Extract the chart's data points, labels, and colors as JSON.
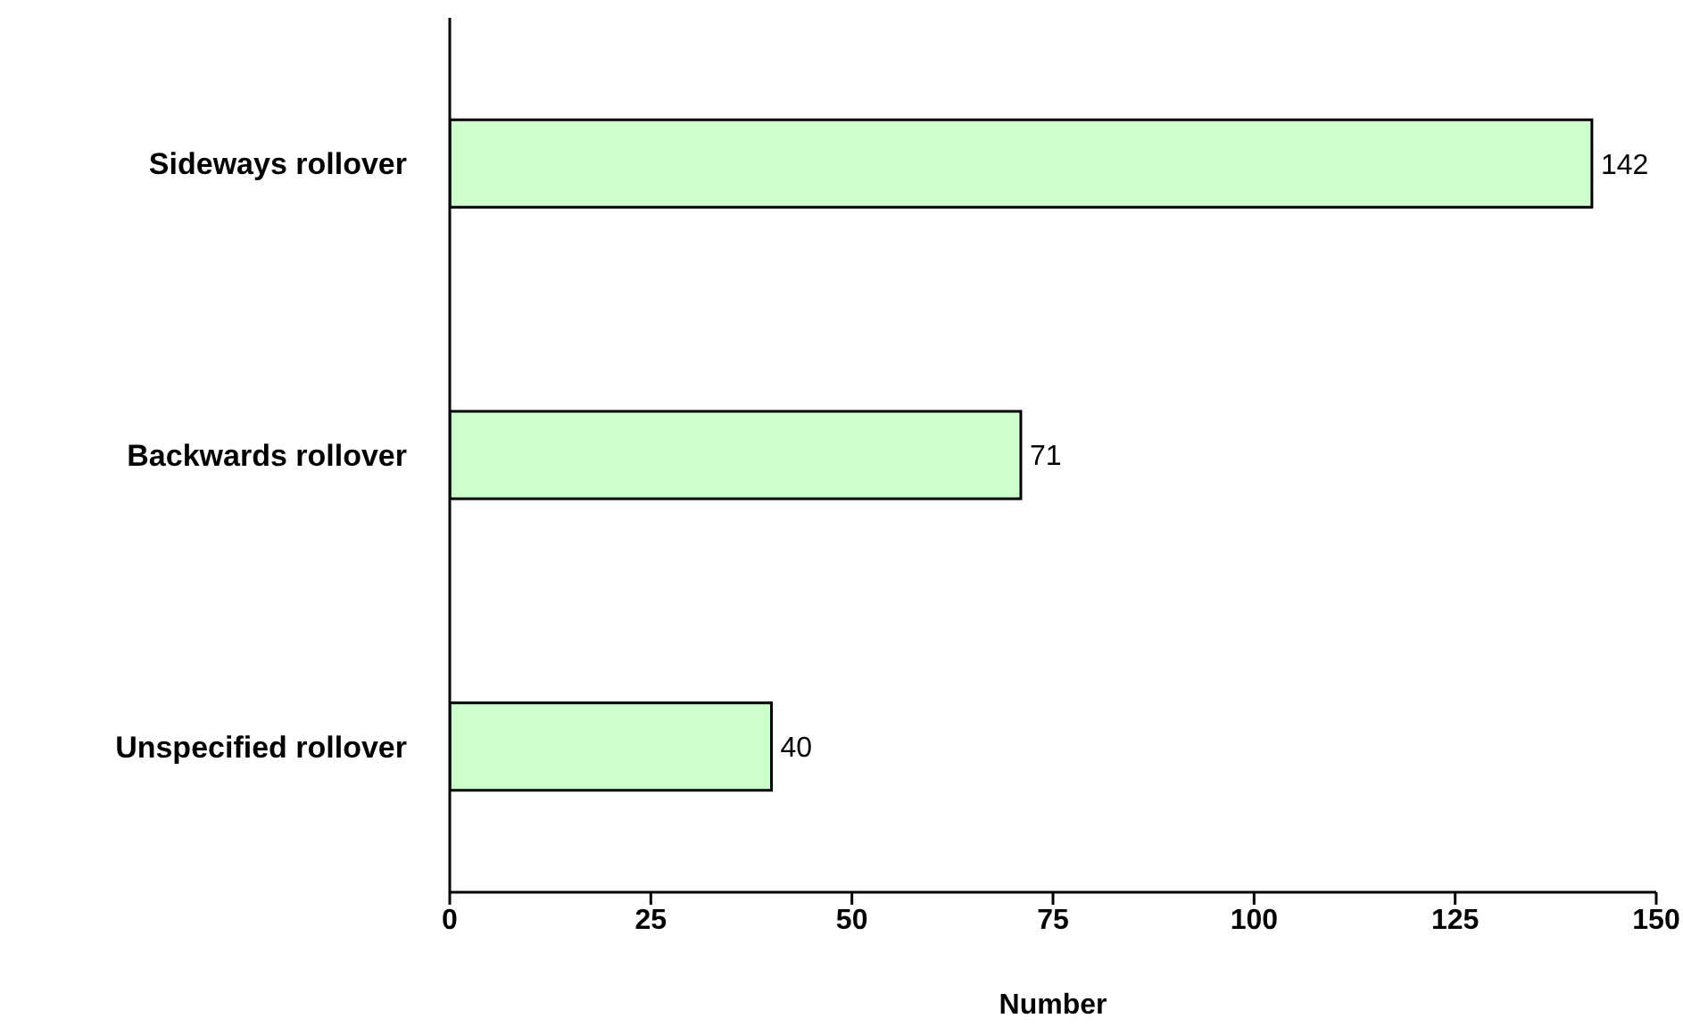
{
  "chart_data": {
    "type": "bar",
    "orientation": "horizontal",
    "xlabel": "Number",
    "categories": [
      "Sideways rollover",
      "Backwards rollover",
      "Unspecified rollover"
    ],
    "values": [
      142,
      71,
      40
    ],
    "color": "#ccffcc",
    "xlim": [
      0,
      150
    ],
    "xticks": [
      0,
      25,
      50,
      75,
      100,
      125,
      150
    ],
    "grid": false,
    "data_labels": true,
    "legend": false
  }
}
